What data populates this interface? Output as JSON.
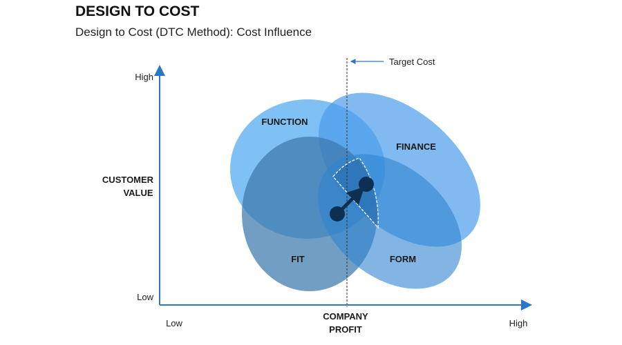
{
  "header": {
    "title": "DESIGN TO COST",
    "subtitle": "Design to Cost (DTC Method): Cost Influence"
  },
  "axes": {
    "y_high": "High",
    "y_low": "Low",
    "y_label_line1": "CUSTOMER",
    "y_label_line2": "VALUE",
    "x_low": "Low",
    "x_high": "High",
    "x_label_line1": "COMPANY",
    "x_label_line2": "PROFIT"
  },
  "target_cost": "Target Cost",
  "sets": {
    "function": "FUNCTION",
    "finance": "FINANCE",
    "fit": "FIT",
    "form": "FORM"
  },
  "colors": {
    "axis": "#2e75c4",
    "function": "#5fb0f2",
    "finance": "#4b9ceb",
    "fit": "#3d78ad",
    "form": "#2f84d0",
    "dot": "#0d2f52"
  }
}
